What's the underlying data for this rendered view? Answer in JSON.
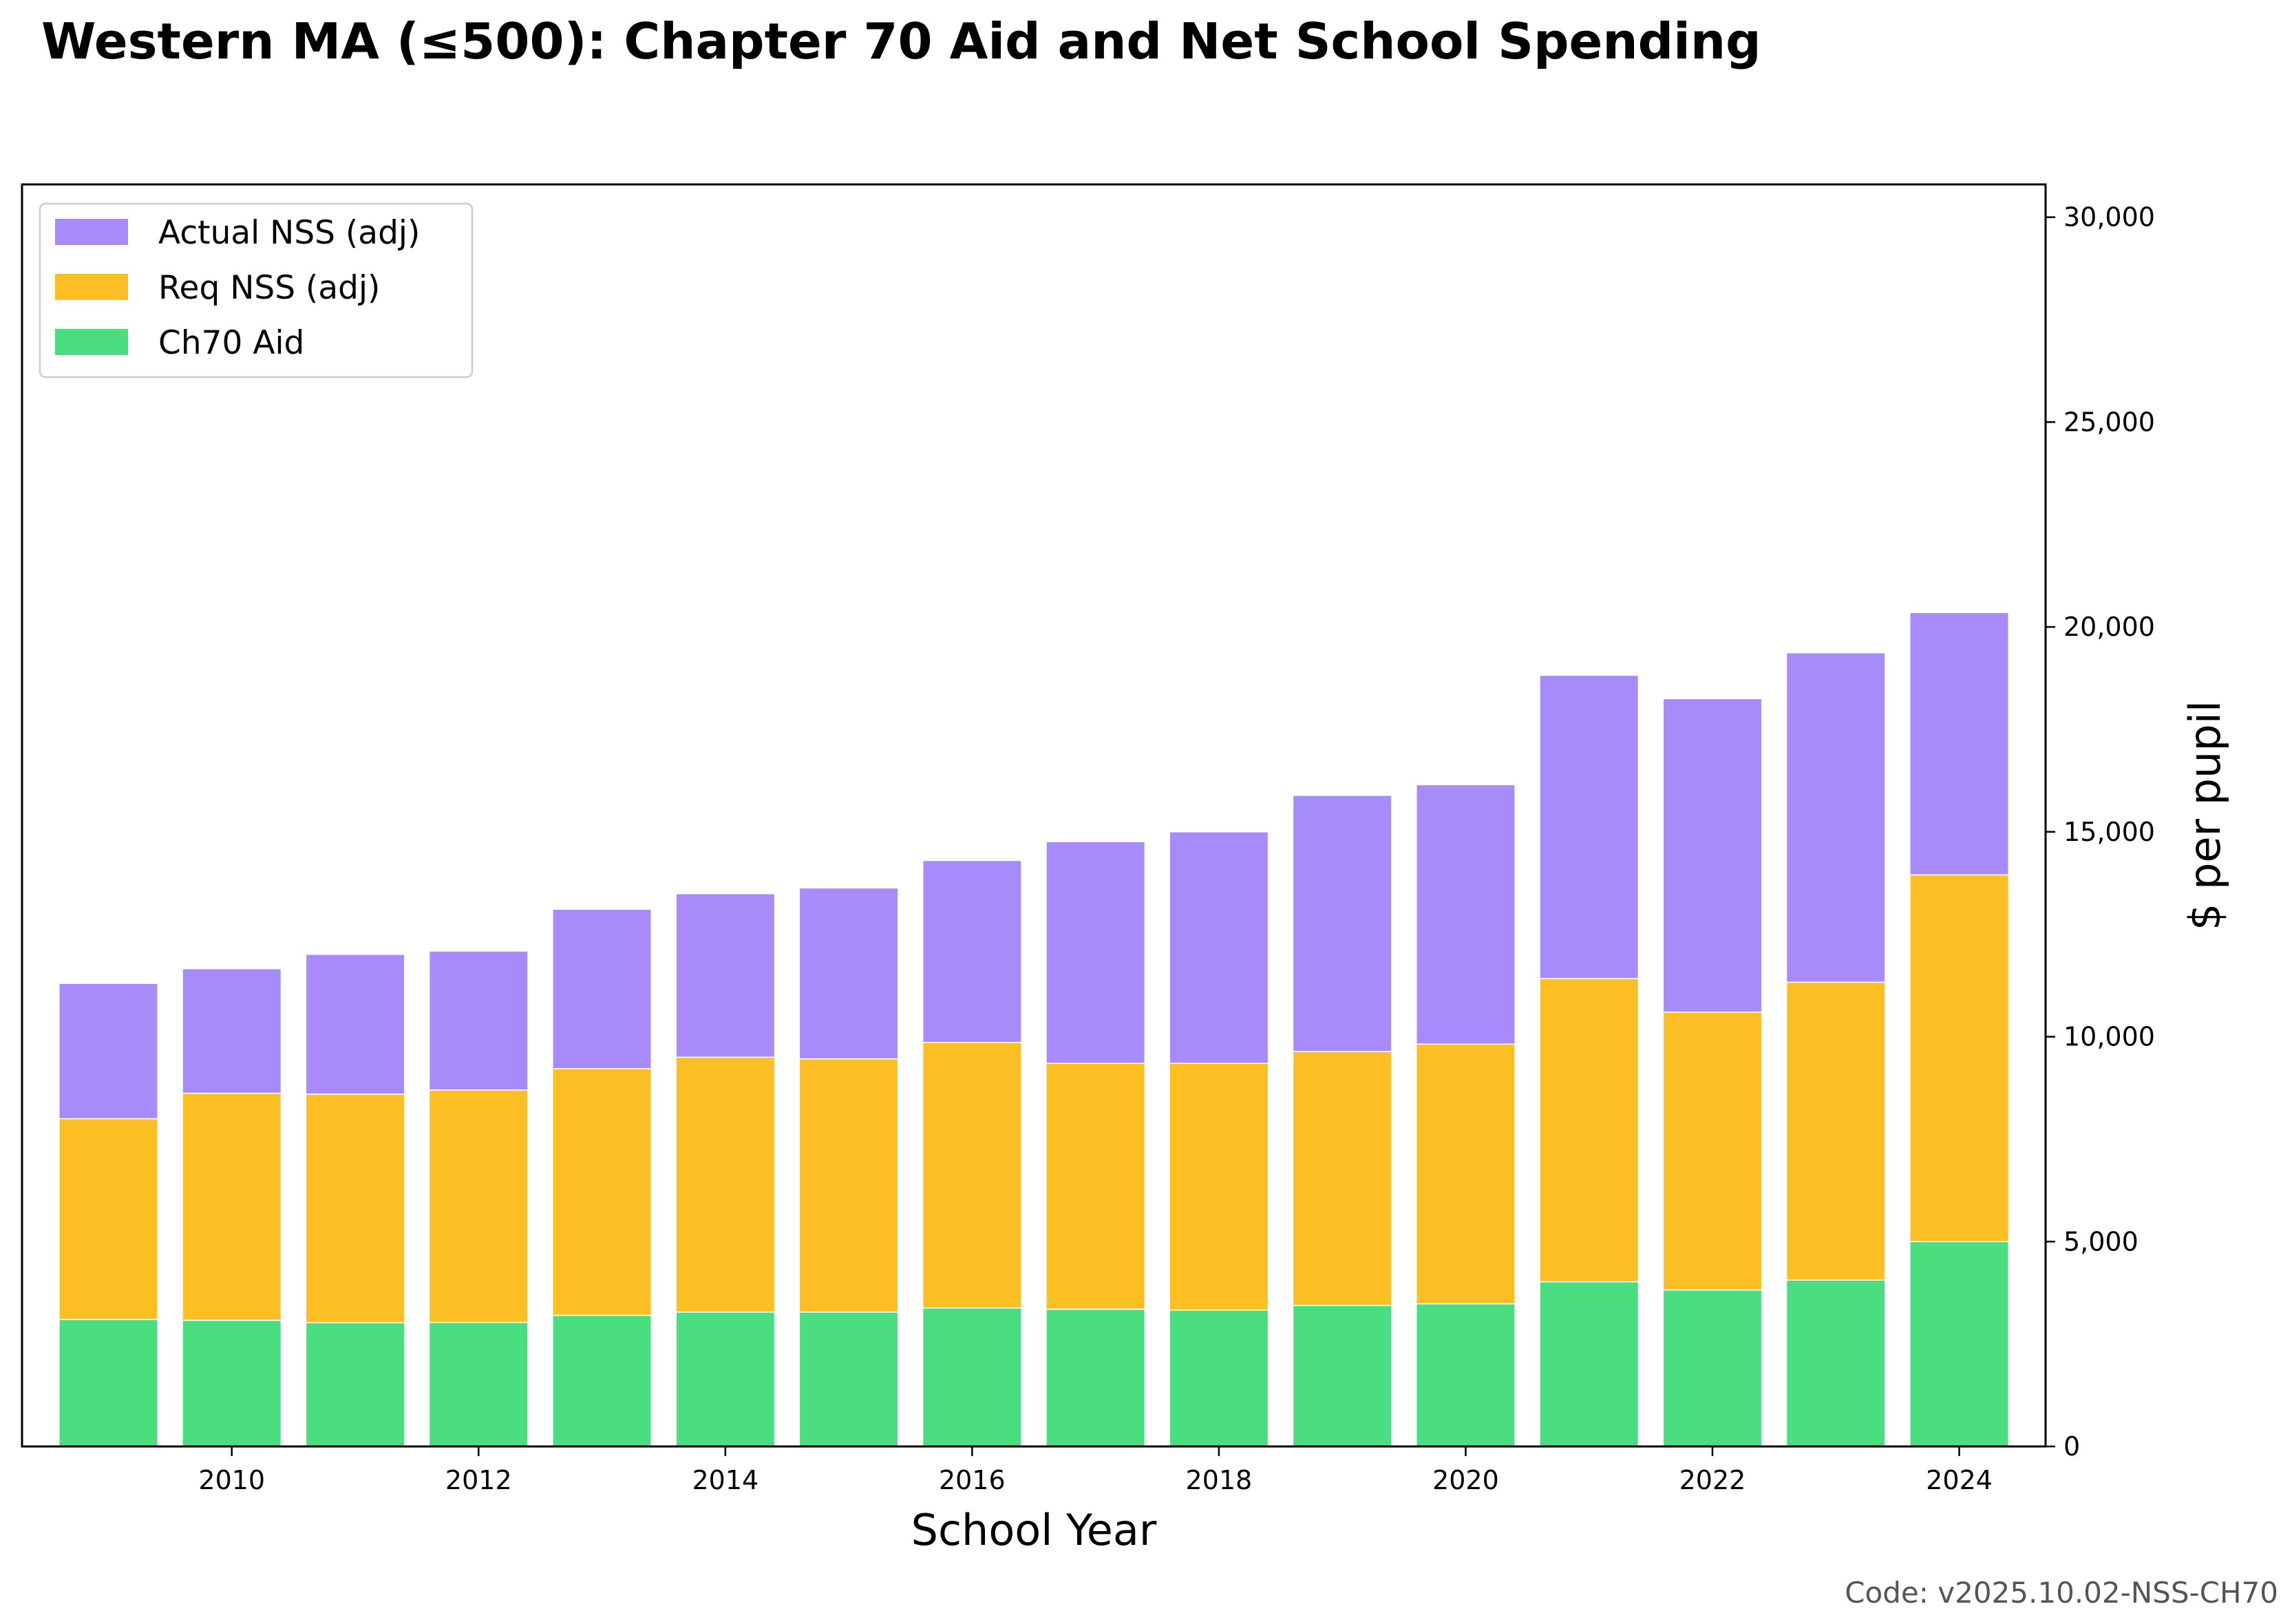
{
  "title": "Western MA (≤500): Chapter 70 Aid and Net School Spending",
  "footer": "Code: v2025.10.02-NSS-CH70",
  "colors": {
    "ch70": "#4ade80",
    "req": "#fbbf24",
    "actual": "#a78bfa"
  },
  "chart_data": {
    "type": "bar",
    "stacked": true,
    "title": "Western MA (≤500): Chapter 70 Aid and Net School Spending",
    "xlabel": "School Year",
    "ylabel": "$ per pupil",
    "y_axis_side": "right",
    "ylim": [
      0,
      30800
    ],
    "yticks": [
      0,
      5000,
      10000,
      15000,
      20000,
      25000,
      30000
    ],
    "ytick_labels": [
      "0",
      "5,000",
      "10,000",
      "15,000",
      "20,000",
      "25,000",
      "30,000"
    ],
    "xlim": [
      2008.3,
      2024.7
    ],
    "xticks": [
      2010,
      2012,
      2014,
      2016,
      2018,
      2020,
      2022,
      2024
    ],
    "xtick_labels": [
      "2010",
      "2012",
      "2014",
      "2016",
      "2018",
      "2020",
      "2022",
      "2024"
    ],
    "legend_position": "top-left",
    "legend_order": [
      "Actual NSS (adj)",
      "Req NSS (adj)",
      "Ch70 Aid"
    ],
    "x": [
      2009,
      2010,
      2011,
      2012,
      2013,
      2014,
      2015,
      2016,
      2017,
      2018,
      2019,
      2020,
      2021,
      2022,
      2023,
      2024
    ],
    "series": [
      {
        "name": "Ch70 Aid",
        "color": "#4ade80",
        "values": [
          3100,
          3080,
          3020,
          3030,
          3200,
          3280,
          3280,
          3380,
          3350,
          3330,
          3440,
          3480,
          4020,
          3820,
          4060,
          5000
        ]
      },
      {
        "name": "Req NSS (adj)",
        "color": "#fbbf24",
        "values": [
          4900,
          5540,
          5580,
          5670,
          6020,
          6220,
          6180,
          6480,
          6000,
          6020,
          6200,
          6340,
          7400,
          6780,
          7270,
          8950
        ]
      },
      {
        "name": "Actual NSS (adj)",
        "color": "#a78bfa",
        "values": [
          3300,
          3040,
          3410,
          3390,
          3890,
          3990,
          4170,
          4440,
          5410,
          5650,
          6250,
          6330,
          7400,
          7650,
          8040,
          6400
        ]
      }
    ]
  }
}
